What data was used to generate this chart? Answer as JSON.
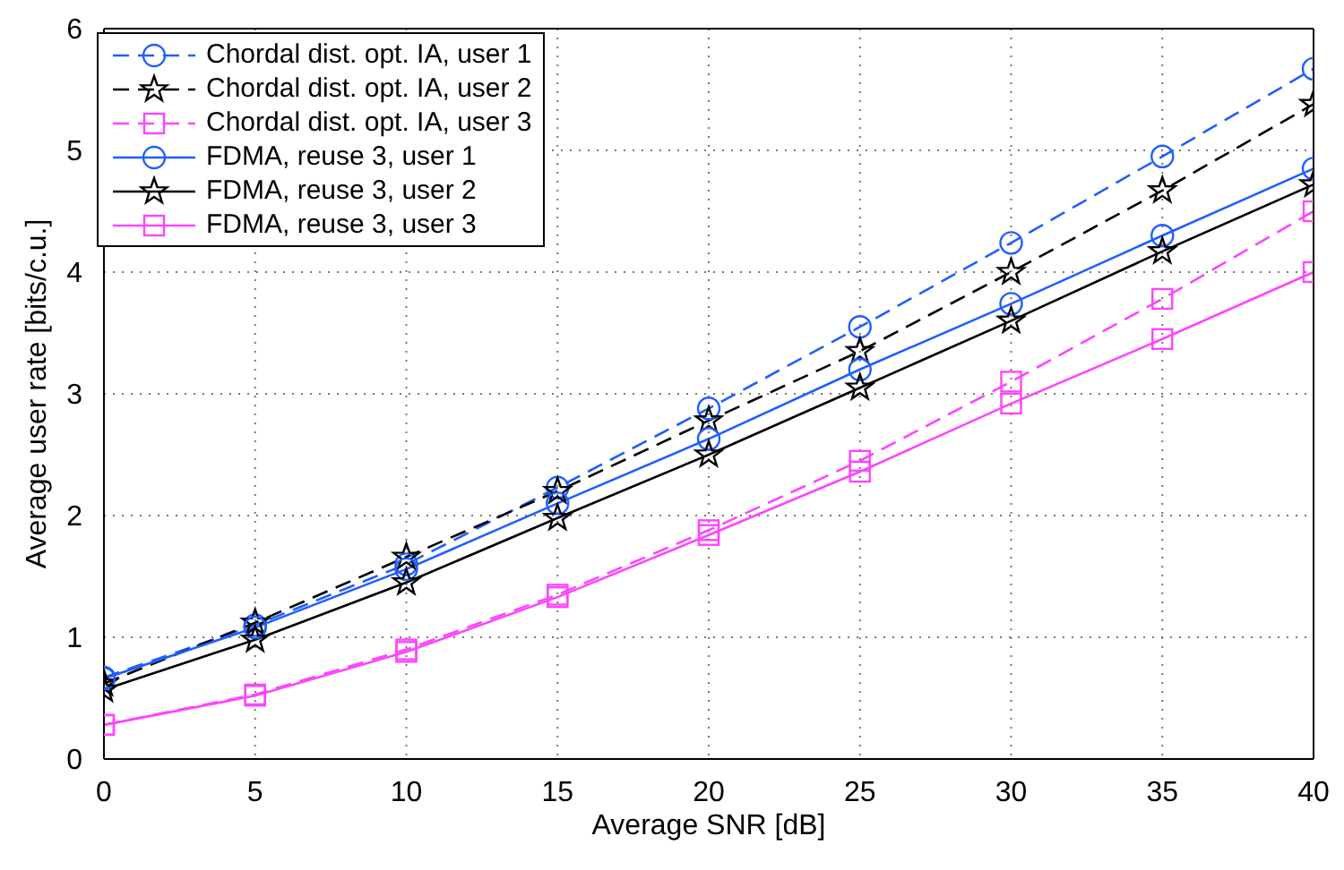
{
  "chart_data": {
    "type": "line",
    "xlabel": "Average SNR [dB]",
    "ylabel": "Average user rate [bits/c.u.]",
    "x": [
      0,
      5,
      10,
      15,
      20,
      25,
      30,
      35,
      40
    ],
    "xlim": [
      0,
      40
    ],
    "xticks": [
      0,
      5,
      10,
      15,
      20,
      25,
      30,
      35,
      40
    ],
    "ylim": [
      0,
      6
    ],
    "yticks": [
      0,
      1,
      2,
      3,
      4,
      5,
      6
    ],
    "grid": true,
    "legend": "top left",
    "series": [
      {
        "name": "Chordal dist. opt. IA, user 1",
        "color": "#1f5fff",
        "marker": "circle",
        "line_style": "dashed",
        "values": [
          0.67,
          1.1,
          1.6,
          2.23,
          2.88,
          3.55,
          4.24,
          4.95,
          5.67
        ]
      },
      {
        "name": "Chordal dist. opt. IA, user 2",
        "color": "#000000",
        "marker": "star",
        "line_style": "dashed",
        "values": [
          0.62,
          1.12,
          1.66,
          2.2,
          2.78,
          3.35,
          4.0,
          4.67,
          5.38
        ]
      },
      {
        "name": "Chordal dist. opt. IA, user 3",
        "color": "#ff44ff",
        "marker": "square",
        "line_style": "dashed",
        "values": [
          0.28,
          0.53,
          0.9,
          1.35,
          1.88,
          2.45,
          3.1,
          3.78,
          4.5
        ]
      },
      {
        "name": "FDMA, reuse 3, user 1",
        "color": "#1f5fff",
        "marker": "circle",
        "line_style": "solid",
        "values": [
          0.66,
          1.08,
          1.56,
          2.1,
          2.63,
          3.2,
          3.74,
          4.3,
          4.85
        ]
      },
      {
        "name": "FDMA, reuse 3, user 2",
        "color": "#000000",
        "marker": "star",
        "line_style": "solid",
        "values": [
          0.57,
          0.98,
          1.45,
          1.98,
          2.5,
          3.05,
          3.6,
          4.17,
          4.72
        ]
      },
      {
        "name": "FDMA, reuse 3, user 3",
        "color": "#ff44ff",
        "marker": "square",
        "line_style": "solid",
        "values": [
          0.28,
          0.52,
          0.88,
          1.33,
          1.84,
          2.36,
          2.92,
          3.45,
          4.0
        ]
      }
    ]
  }
}
